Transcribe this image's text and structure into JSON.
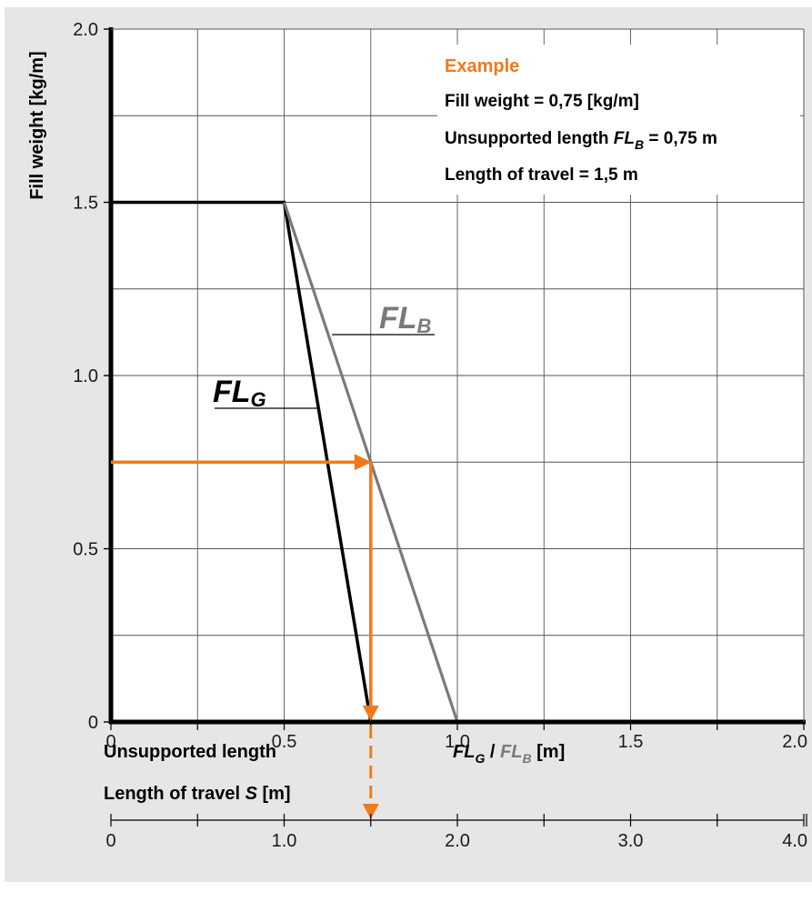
{
  "colors": {
    "background": "#e6e6e6",
    "plot": "#ffffff",
    "grid": "#555555",
    "fl_g": "#000000",
    "fl_b": "#7a7a7a",
    "accent": "#f07a1a"
  },
  "example": {
    "title": "Example",
    "line1": "Fill weight = 0,75 [kg/m]",
    "line2_prefix": "Unsupported length ",
    "line2_var": "FL",
    "line2_sub": "B",
    "line2_suffix": " = 0,75 m",
    "line3": "Length of travel = 1,5 m"
  },
  "labels": {
    "fl_b_main": "FL",
    "fl_b_sub": "B",
    "fl_g_main": "FL",
    "fl_g_sub": "G",
    "x_title": "Unsupported length",
    "x_unit_g": "FL",
    "x_unit_g_sub": "G",
    "x_unit_sep": " / ",
    "x_unit_b": "FL",
    "x_unit_b_sub": "B",
    "x_unit_suffix": " [m]",
    "travel_title_prefix": "Length of travel ",
    "travel_title_var": "S",
    "travel_title_suffix": " [m]"
  },
  "chart_data": {
    "type": "line",
    "ylabel": "Fill weight [kg/m]",
    "xlim": [
      0,
      2.0
    ],
    "ylim": [
      0,
      2.0
    ],
    "x_ticks": [
      "0",
      "0.5",
      "1.0",
      "1.5",
      "2.0"
    ],
    "y_ticks": [
      "0",
      "0.5",
      "1.0",
      "1.5",
      "2.0"
    ],
    "travel_ticks": [
      "0",
      "1.0",
      "2.0",
      "3.0",
      "4.0"
    ],
    "grid": true,
    "series": [
      {
        "name": "FLG",
        "x": [
          0,
          0.5,
          0.75
        ],
        "y": [
          1.5,
          1.5,
          0
        ]
      },
      {
        "name": "FLB",
        "x": [
          0.5,
          1.0
        ],
        "y": [
          1.5,
          0
        ]
      }
    ],
    "example": {
      "fill_weight": 0.75,
      "unsupported_length": 0.75,
      "length_of_travel": 1.5
    }
  }
}
